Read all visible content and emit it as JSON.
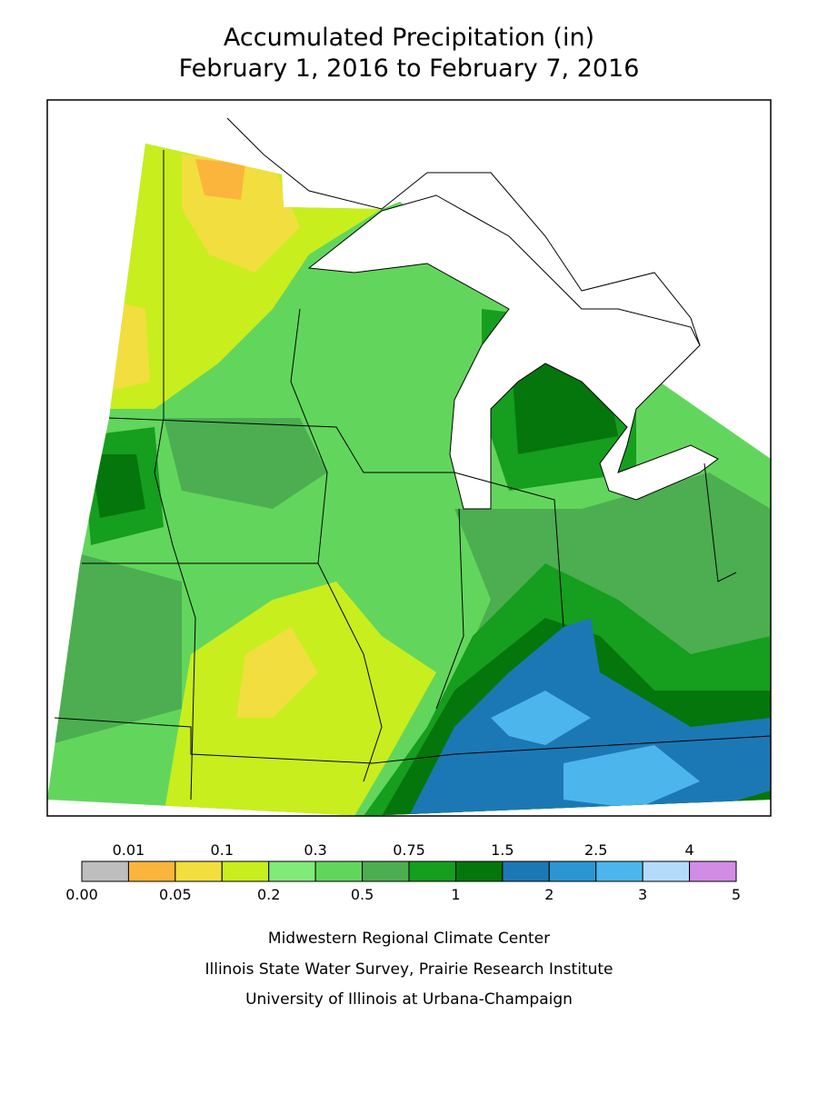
{
  "header": {
    "title_lines": [
      "Accumulated Precipitation (in)",
      "February 1, 2016 to February 7, 2016"
    ]
  },
  "legend": {
    "labels": [
      "0.00",
      "0.01",
      "0.05",
      "0.1",
      "0.2",
      "0.3",
      "0.5",
      "0.75",
      "1",
      "1.5",
      "2",
      "2.5",
      "3",
      "4",
      "5"
    ],
    "colors": [
      "#bebebe",
      "#fbb43c",
      "#f2de3e",
      "#c8ee1e",
      "#82ea78",
      "#62d65c",
      "#4cae50",
      "#169e1e",
      "#05760b",
      "#1c78b4",
      "#2c96d2",
      "#4cb6ec",
      "#b4dcfa",
      "#d28ce6"
    ]
  },
  "footer": {
    "lines": [
      "Midwestern Regional Climate Center",
      "Illinois State Water Survey, Prairie Research Institute",
      "University of Illinois at Urbana-Champaign"
    ]
  }
}
